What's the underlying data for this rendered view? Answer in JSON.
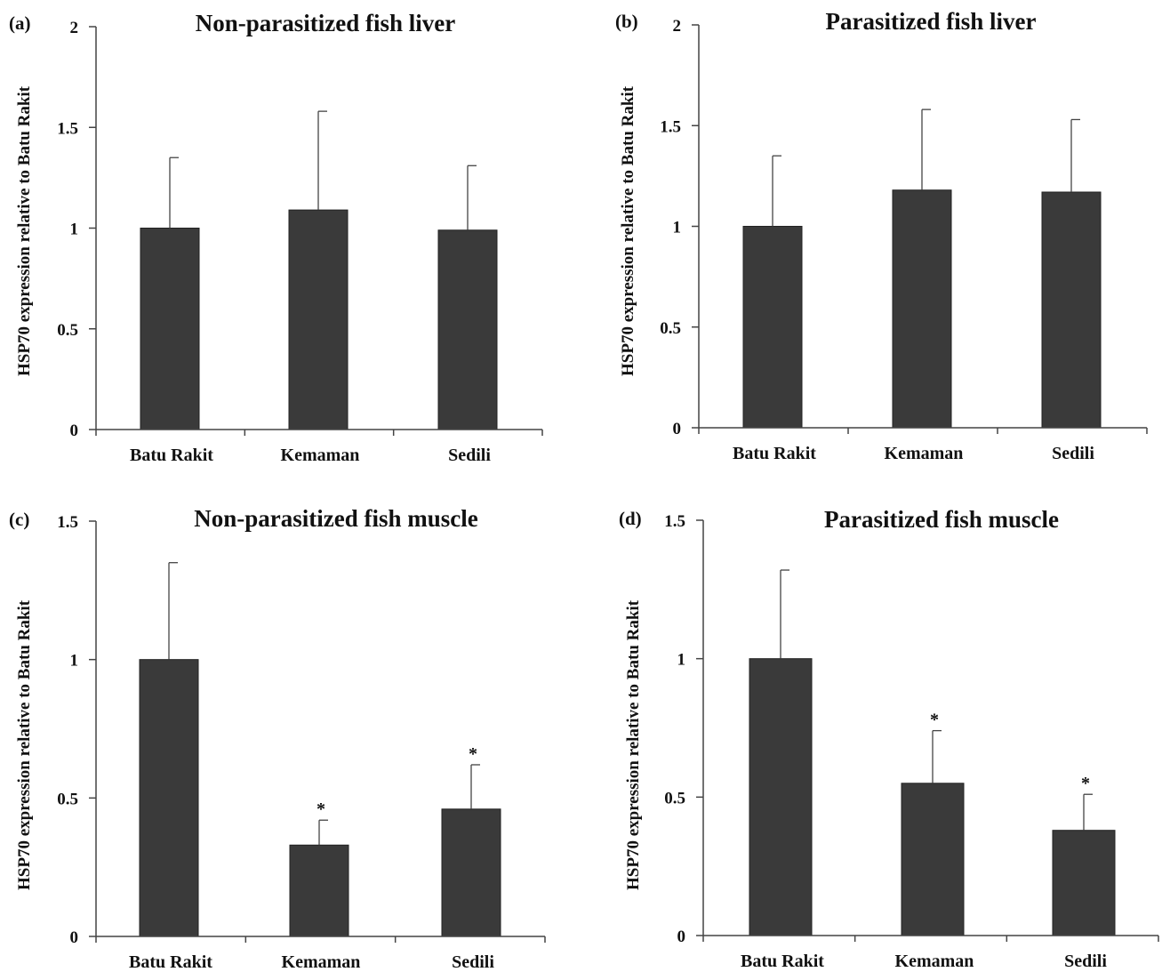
{
  "figure": {
    "colors": {
      "bar": "#3a3a3a",
      "axis": "#444444",
      "text": "#111111"
    }
  },
  "chart_data": [
    {
      "type": "bar",
      "panel_label": "(a)",
      "title": "Non-parasitized  fish liver",
      "ylabel": "HSP70 expression relative to Batu Rakit",
      "categories": [
        "Batu Rakit",
        "Kemaman",
        "Sedili"
      ],
      "values": [
        1.0,
        1.09,
        0.99
      ],
      "error_upper": [
        1.35,
        1.58,
        1.31
      ],
      "significance": [
        "",
        "",
        ""
      ],
      "ylim": [
        0,
        2
      ],
      "yticks": [
        0,
        0.5,
        1,
        1.5,
        2
      ],
      "ytick_labels": [
        "0",
        "0.5",
        "1",
        "1.5",
        "2"
      ],
      "grid": false
    },
    {
      "type": "bar",
      "panel_label": "(b)",
      "title": "Parasitized  fish liver",
      "ylabel": "HSP70 expression relative to Batu Rakit",
      "categories": [
        "Batu Rakit",
        "Kemaman",
        "Sedili"
      ],
      "values": [
        1.0,
        1.18,
        1.17
      ],
      "error_upper": [
        1.35,
        1.58,
        1.53
      ],
      "significance": [
        "",
        "",
        ""
      ],
      "ylim": [
        0,
        2
      ],
      "yticks": [
        0,
        0.5,
        1,
        1.5,
        2
      ],
      "ytick_labels": [
        "0",
        "0.5",
        "1",
        "1.5",
        "2"
      ],
      "grid": false
    },
    {
      "type": "bar",
      "panel_label": "(c)",
      "title": "Non-parasitized  fish muscle",
      "ylabel": "HSP70 expression relative to Batu Rakit",
      "categories": [
        "Batu Rakit",
        "Kemaman",
        "Sedili"
      ],
      "values": [
        1.0,
        0.33,
        0.46
      ],
      "error_upper": [
        1.35,
        0.42,
        0.62
      ],
      "significance": [
        "",
        "*",
        "*"
      ],
      "ylim": [
        0,
        1.5
      ],
      "yticks": [
        0,
        0.5,
        1,
        1.5
      ],
      "ytick_labels": [
        "0",
        "0.5",
        "1",
        "1.5"
      ],
      "grid": false
    },
    {
      "type": "bar",
      "panel_label": "(d)",
      "title": "Parasitized  fish muscle",
      "ylabel": "HSP70 expression relative to Batu Rakit",
      "categories": [
        "Batu Rakit",
        "Kemaman",
        "Sedili"
      ],
      "values": [
        1.0,
        0.55,
        0.38
      ],
      "error_upper": [
        1.32,
        0.74,
        0.51
      ],
      "significance": [
        "",
        "*",
        "*"
      ],
      "ylim": [
        0,
        1.5
      ],
      "yticks": [
        0,
        0.5,
        1,
        1.5
      ],
      "ytick_labels": [
        "0",
        "0.5",
        "1",
        "1.5"
      ],
      "grid": false
    }
  ]
}
